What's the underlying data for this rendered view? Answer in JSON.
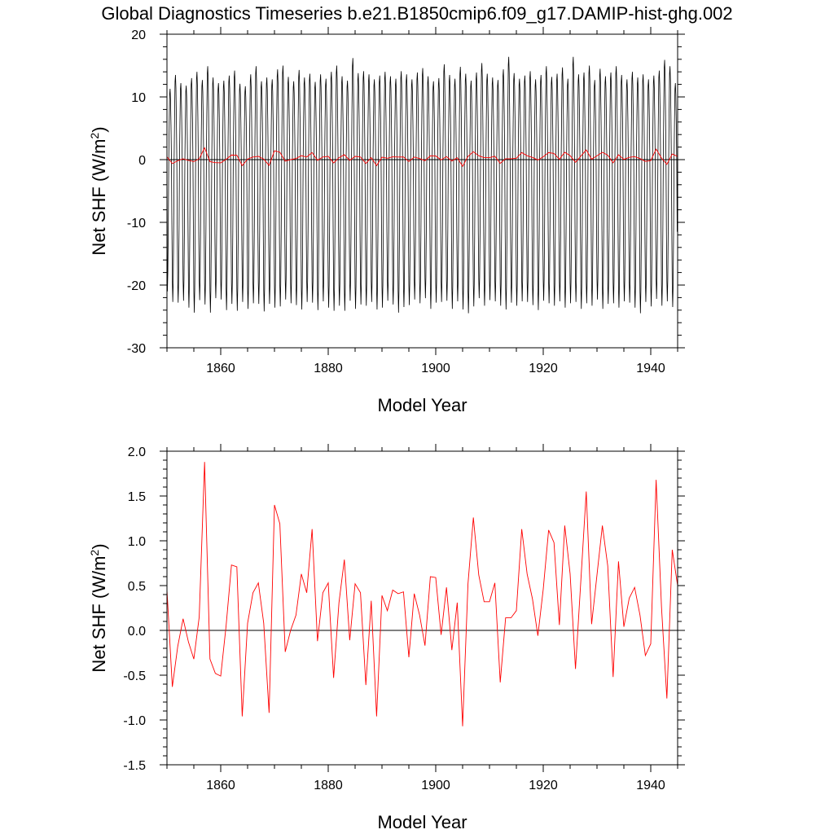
{
  "title": "Global Diagnostics Timeseries b.e21.B1850cmip6.f09_g17.DAMIP-hist-ghg.002",
  "colors": {
    "monthly": "#000000",
    "annual": "#ff0000",
    "axes": "#000000"
  },
  "chart_data": [
    {
      "type": "line",
      "xlabel": "Model Year",
      "ylabel": "Net SHF (W/m²)",
      "ylabel_main": "Net SHF (W/m",
      "ylabel_sup": "2",
      "ylabel_close": ")",
      "xlim": [
        1850,
        1945
      ],
      "ylim": [
        -30,
        20
      ],
      "x_ticks": [
        1860,
        1880,
        1900,
        1920,
        1940
      ],
      "y_ticks": [
        20,
        10,
        0,
        -10,
        -20,
        -30
      ],
      "y_tick_labels": [
        "20",
        "10",
        "0",
        "-10",
        "-20",
        "-30"
      ],
      "zero_line": true,
      "series": [
        {
          "style": "monthly",
          "color": "#000000",
          "start_year": 1850,
          "annual_max": [
            11.3,
            13.5,
            12.2,
            11.8,
            13.0,
            14.0,
            12.7,
            14.9,
            13.1,
            12.2,
            12.6,
            13.4,
            14.2,
            12.1,
            11.7,
            13.6,
            14.9,
            12.5,
            13.1,
            12.8,
            14.4,
            15.0,
            13.2,
            12.5,
            14.3,
            13.1,
            13.7,
            12.4,
            13.6,
            12.9,
            14.0,
            15.0,
            13.3,
            12.6,
            16.2,
            13.8,
            14.1,
            13.6,
            12.8,
            13.4,
            14.0,
            13.3,
            12.9,
            14.1,
            13.6,
            12.8,
            13.9,
            14.6,
            13.3,
            12.5,
            13.0,
            15.2,
            13.5,
            12.9,
            14.8,
            13.7,
            12.6,
            13.9,
            15.4,
            13.7,
            13.1,
            12.7,
            14.4,
            16.4,
            13.8,
            12.9,
            13.4,
            14.1,
            12.8,
            13.5,
            14.9,
            13.2,
            13.7,
            14.7,
            12.9,
            16.4,
            13.6,
            13.9,
            15.0,
            12.7,
            14.5,
            13.3,
            13.9,
            14.9,
            13.5,
            12.8,
            14.0,
            13.1,
            13.6,
            12.8,
            13.4,
            14.2,
            15.9,
            14.9,
            12.2
          ],
          "annual_min": [
            -21.0,
            -22.7,
            -22.8,
            -22.5,
            -23.6,
            -24.4,
            -22.4,
            -23.1,
            -24.4,
            -22.1,
            -22.3,
            -24.0,
            -23.0,
            -24.1,
            -22.7,
            -23.8,
            -22.9,
            -23.0,
            -24.2,
            -23.0,
            -23.6,
            -23.4,
            -22.3,
            -22.9,
            -23.2,
            -23.9,
            -22.7,
            -22.8,
            -24.0,
            -22.6,
            -23.6,
            -24.1,
            -23.3,
            -24.1,
            -22.5,
            -23.8,
            -23.1,
            -23.3,
            -22.7,
            -23.9,
            -23.6,
            -22.5,
            -23.1,
            -24.4,
            -23.5,
            -23.2,
            -22.3,
            -22.9,
            -22.1,
            -23.8,
            -22.8,
            -22.7,
            -22.5,
            -23.8,
            -22.6,
            -23.9,
            -24.5,
            -23.4,
            -22.1,
            -23.3,
            -22.4,
            -22.6,
            -23.3,
            -23.9,
            -22.8,
            -23.3,
            -22.6,
            -22.7,
            -23.2,
            -24.0,
            -22.5,
            -22.9,
            -23.3,
            -22.6,
            -23.6,
            -22.9,
            -22.7,
            -23.8,
            -22.9,
            -23.3,
            -22.3,
            -23.8,
            -23.0,
            -22.9,
            -23.6,
            -22.6,
            -22.8,
            -23.6,
            -24.5,
            -22.7,
            -23.4,
            -22.2,
            -23.3,
            -22.6,
            -23.5
          ]
        },
        {
          "style": "annual",
          "color": "#ff0000",
          "x": [
            1850,
            1851,
            1852,
            1853,
            1854,
            1855,
            1856,
            1857,
            1858,
            1859,
            1860,
            1861,
            1862,
            1863,
            1864,
            1865,
            1866,
            1867,
            1868,
            1869,
            1870,
            1871,
            1872,
            1873,
            1874,
            1875,
            1876,
            1877,
            1878,
            1879,
            1880,
            1881,
            1882,
            1883,
            1884,
            1885,
            1886,
            1887,
            1888,
            1889,
            1890,
            1891,
            1892,
            1893,
            1894,
            1895,
            1896,
            1897,
            1898,
            1899,
            1900,
            1901,
            1902,
            1903,
            1904,
            1905,
            1906,
            1907,
            1908,
            1909,
            1910,
            1911,
            1912,
            1913,
            1914,
            1915,
            1916,
            1917,
            1918,
            1919,
            1920,
            1921,
            1922,
            1923,
            1924,
            1925,
            1926,
            1927,
            1928,
            1929,
            1930,
            1931,
            1932,
            1933,
            1934,
            1935,
            1936,
            1937,
            1938,
            1939,
            1940,
            1941,
            1942,
            1943,
            1944,
            1945
          ],
          "values": [
            0.45,
            -0.63,
            -0.18,
            0.13,
            -0.13,
            -0.32,
            0.15,
            1.88,
            -0.32,
            -0.48,
            -0.51,
            0.05,
            0.73,
            0.71,
            -0.96,
            0.08,
            0.42,
            0.53,
            0.08,
            -0.92,
            1.4,
            1.19,
            -0.24,
            0.0,
            0.17,
            0.63,
            0.42,
            1.13,
            -0.12,
            0.42,
            0.53,
            -0.53,
            0.31,
            0.79,
            -0.11,
            0.52,
            0.42,
            -0.61,
            0.33,
            -0.96,
            0.39,
            0.22,
            0.45,
            0.41,
            0.43,
            -0.3,
            0.41,
            0.17,
            -0.17,
            0.6,
            0.59,
            -0.05,
            0.48,
            -0.22,
            0.31,
            -1.07,
            0.52,
            1.26,
            0.62,
            0.32,
            0.32,
            0.53,
            -0.58,
            0.14,
            0.14,
            0.22,
            1.13,
            0.63,
            0.35,
            -0.06,
            0.46,
            1.12,
            0.98,
            0.06,
            1.17,
            0.63,
            -0.43,
            0.56,
            1.55,
            0.07,
            0.62,
            1.17,
            0.72,
            -0.52,
            0.77,
            0.04,
            0.36,
            0.48,
            0.17,
            -0.28,
            -0.15,
            1.68,
            0.26,
            -0.76,
            0.9,
            0.5
          ]
        }
      ]
    },
    {
      "type": "line",
      "xlabel": "Model Year",
      "ylabel": "Net SHF (W/m²)",
      "ylabel_main": "Net SHF (W/m",
      "ylabel_sup": "2",
      "ylabel_close": ")",
      "xlim": [
        1850,
        1945
      ],
      "ylim": [
        -1.5,
        2.0
      ],
      "x_ticks": [
        1860,
        1880,
        1900,
        1920,
        1940
      ],
      "y_ticks": [
        2.0,
        1.5,
        1.0,
        0.5,
        0.0,
        -0.5,
        -1.0,
        -1.5
      ],
      "y_tick_labels": [
        "2.0",
        "1.5",
        "1.0",
        "0.5",
        "0.0",
        "-0.5",
        "-1.0",
        "-1.5"
      ],
      "zero_line": true,
      "series": [
        {
          "style": "annual",
          "color": "#ff0000",
          "x": [
            1850,
            1851,
            1852,
            1853,
            1854,
            1855,
            1856,
            1857,
            1858,
            1859,
            1860,
            1861,
            1862,
            1863,
            1864,
            1865,
            1866,
            1867,
            1868,
            1869,
            1870,
            1871,
            1872,
            1873,
            1874,
            1875,
            1876,
            1877,
            1878,
            1879,
            1880,
            1881,
            1882,
            1883,
            1884,
            1885,
            1886,
            1887,
            1888,
            1889,
            1890,
            1891,
            1892,
            1893,
            1894,
            1895,
            1896,
            1897,
            1898,
            1899,
            1900,
            1901,
            1902,
            1903,
            1904,
            1905,
            1906,
            1907,
            1908,
            1909,
            1910,
            1911,
            1912,
            1913,
            1914,
            1915,
            1916,
            1917,
            1918,
            1919,
            1920,
            1921,
            1922,
            1923,
            1924,
            1925,
            1926,
            1927,
            1928,
            1929,
            1930,
            1931,
            1932,
            1933,
            1934,
            1935,
            1936,
            1937,
            1938,
            1939,
            1940,
            1941,
            1942,
            1943,
            1944,
            1945
          ],
          "values": [
            0.45,
            -0.63,
            -0.18,
            0.13,
            -0.13,
            -0.32,
            0.15,
            1.88,
            -0.32,
            -0.48,
            -0.51,
            0.05,
            0.73,
            0.71,
            -0.96,
            0.08,
            0.42,
            0.53,
            0.08,
            -0.92,
            1.4,
            1.19,
            -0.24,
            0.0,
            0.17,
            0.63,
            0.42,
            1.13,
            -0.12,
            0.42,
            0.53,
            -0.53,
            0.31,
            0.79,
            -0.11,
            0.52,
            0.42,
            -0.61,
            0.33,
            -0.96,
            0.39,
            0.22,
            0.45,
            0.41,
            0.43,
            -0.3,
            0.41,
            0.17,
            -0.17,
            0.6,
            0.59,
            -0.05,
            0.48,
            -0.22,
            0.31,
            -1.07,
            0.52,
            1.26,
            0.62,
            0.32,
            0.32,
            0.53,
            -0.58,
            0.14,
            0.14,
            0.22,
            1.13,
            0.63,
            0.35,
            -0.06,
            0.46,
            1.12,
            0.98,
            0.06,
            1.17,
            0.63,
            -0.43,
            0.56,
            1.55,
            0.07,
            0.62,
            1.17,
            0.72,
            -0.52,
            0.77,
            0.04,
            0.36,
            0.48,
            0.17,
            -0.28,
            -0.15,
            1.68,
            0.26,
            -0.76,
            0.9,
            0.5
          ]
        }
      ]
    }
  ]
}
